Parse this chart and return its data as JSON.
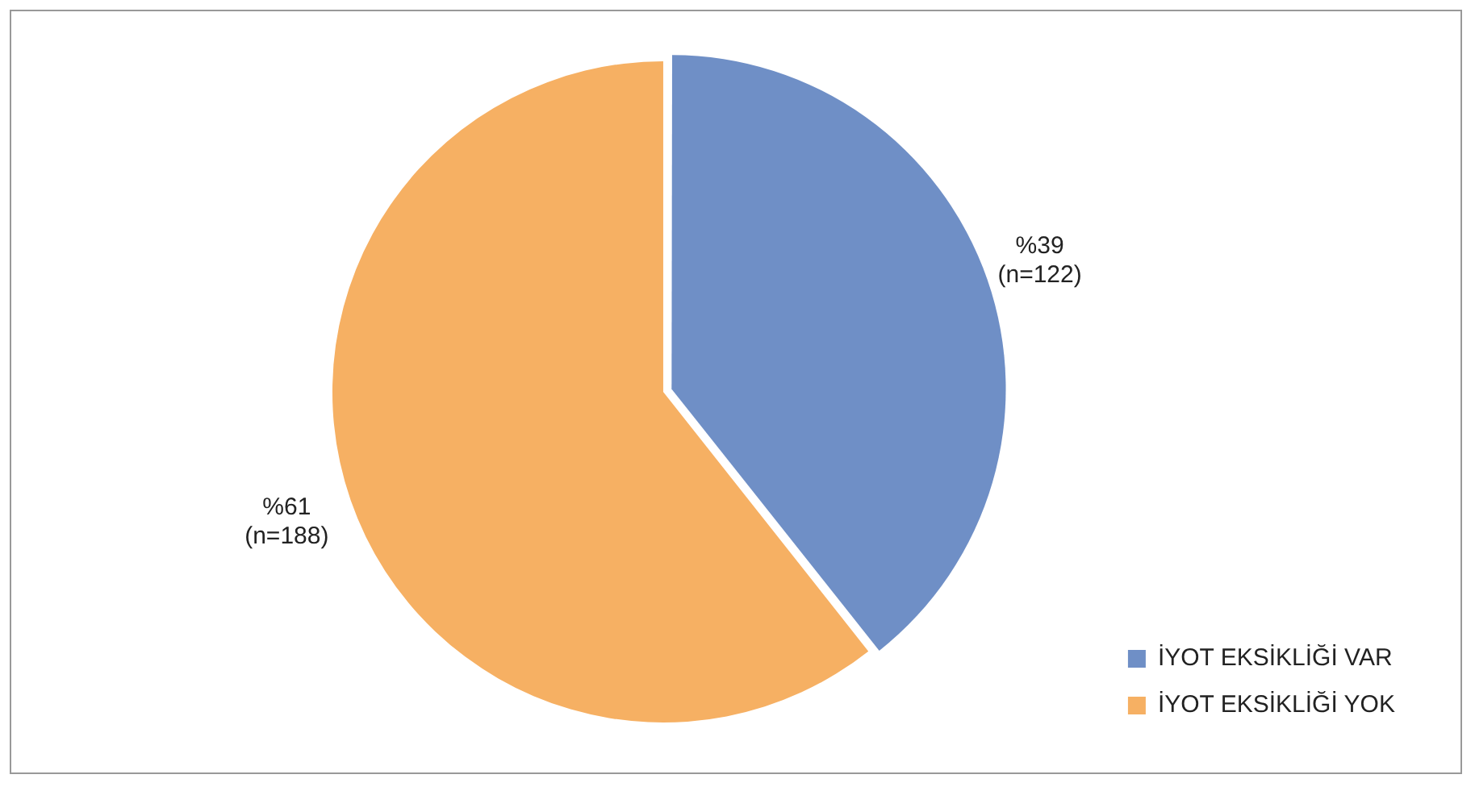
{
  "chart_data": {
    "type": "pie",
    "categories": [
      "İYOT EKSİKLİĞİ VAR",
      "İYOT EKSİKLİĞİ YOK"
    ],
    "values": [
      122,
      188
    ],
    "colors": [
      "#6f8fc6",
      "#f6b063"
    ],
    "value_labels": [
      "%39\n(n=122)",
      "%61\n(n=188)"
    ],
    "legend": "bottom right"
  }
}
